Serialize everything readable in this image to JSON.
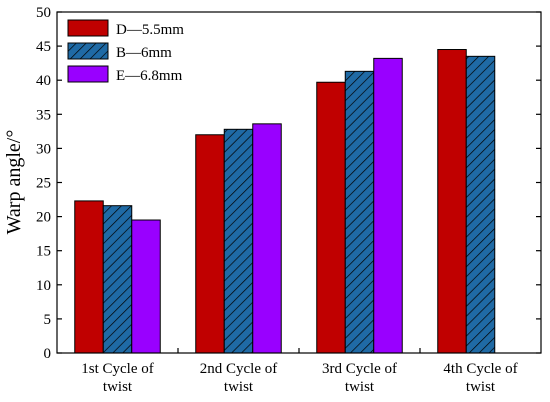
{
  "chart_data": {
    "type": "bar",
    "ylabel": "Warp angle/°",
    "xlabel": "",
    "title": "",
    "ylim": [
      0,
      50
    ],
    "yticks": [
      0,
      5,
      10,
      15,
      20,
      25,
      30,
      35,
      40,
      45,
      50
    ],
    "grid": false,
    "legend_position": "top-left",
    "categories": [
      [
        "1st Cycle of",
        "twist"
      ],
      [
        "2nd Cycle of",
        "twist"
      ],
      [
        "3rd Cycle of",
        "twist"
      ],
      [
        "4th Cycle of",
        "twist"
      ]
    ],
    "series": [
      {
        "name": "D—5.5mm",
        "color": "#c00000",
        "pattern": "solid",
        "values": [
          22.3,
          32.0,
          39.7,
          44.5
        ]
      },
      {
        "name": "B—6mm",
        "color": "#1f6aa5",
        "pattern": "hatch",
        "values": [
          21.6,
          32.8,
          41.3,
          43.5
        ]
      },
      {
        "name": "E—6.8mm",
        "color": "#9900ff",
        "pattern": "solid",
        "values": [
          19.5,
          33.6,
          43.2,
          null
        ]
      }
    ]
  }
}
